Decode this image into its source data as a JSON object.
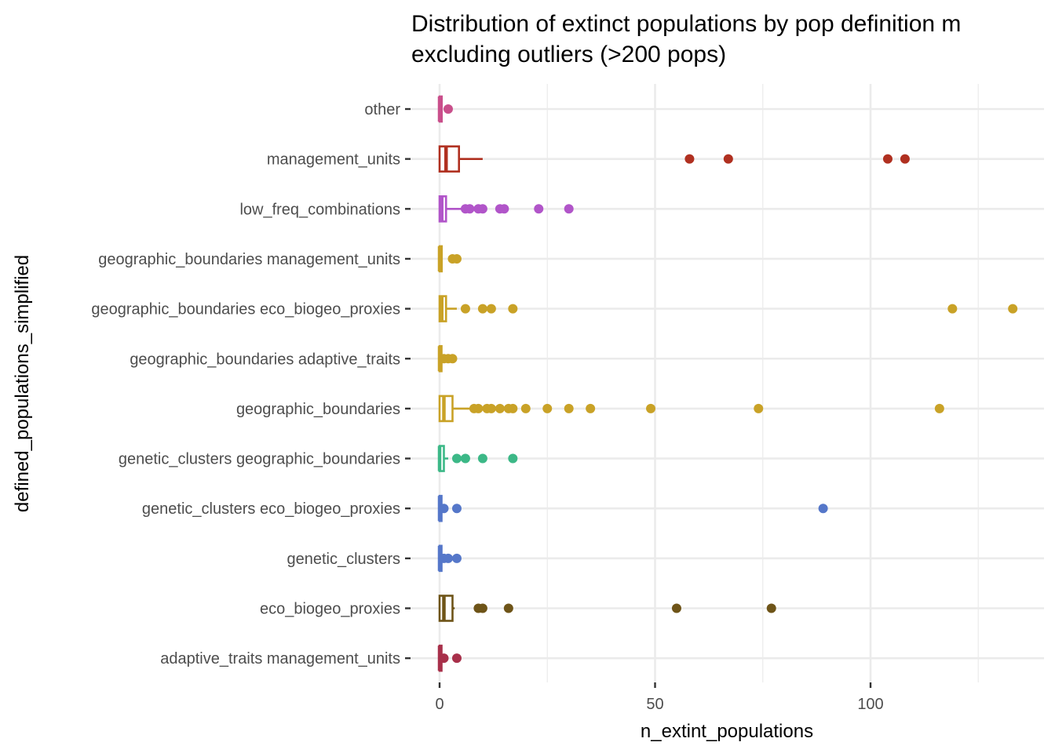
{
  "chart_data": {
    "type": "boxplot",
    "orientation": "horizontal",
    "title_lines": [
      "Distribution of extinct populations by pop definition m",
      "excluding outliers (>200 pops)"
    ],
    "xlabel": "n_extint_populations",
    "ylabel": "defined_populations_simplified",
    "xlim": [
      -0.5,
      140.5
    ],
    "x_ticks": [
      0,
      50,
      100
    ],
    "x_tick_labels": [
      "0",
      "50",
      "100"
    ],
    "x_minor_ticks": [
      25,
      75,
      125
    ],
    "grid": true,
    "legend": "none",
    "categories": [
      {
        "name": "other",
        "color": "#c94f8b",
        "box": {
          "q1": 0,
          "median": 0,
          "q3": 0.5,
          "whisker_low": 0,
          "whisker_high": 0.5
        },
        "outliers": [
          2
        ]
      },
      {
        "name": "management_units",
        "color": "#b03020",
        "box": {
          "q1": 0,
          "median": 1.5,
          "q3": 4.5,
          "whisker_low": 0,
          "whisker_high": 10
        },
        "outliers": [
          58,
          67,
          104,
          108
        ]
      },
      {
        "name": "low_freq_combinations",
        "color": "#b155c9",
        "box": {
          "q1": 0,
          "median": 0.5,
          "q3": 1.5,
          "whisker_low": 0,
          "whisker_high": 5
        },
        "outliers": [
          6,
          7,
          9,
          10,
          14,
          15,
          23,
          30
        ]
      },
      {
        "name": "geographic_boundaries management_units",
        "color": "#c9a227",
        "box": {
          "q1": 0,
          "median": 0,
          "q3": 0.5,
          "whisker_low": 0,
          "whisker_high": 0.5
        },
        "outliers": [
          3,
          4
        ]
      },
      {
        "name": "geographic_boundaries eco_biogeo_proxies",
        "color": "#c9a227",
        "box": {
          "q1": 0,
          "median": 0.5,
          "q3": 1.5,
          "whisker_low": 0,
          "whisker_high": 4
        },
        "outliers": [
          6,
          10,
          12,
          17,
          119,
          133
        ]
      },
      {
        "name": "geographic_boundaries adaptive_traits",
        "color": "#c9a227",
        "box": {
          "q1": 0,
          "median": 0,
          "q3": 0,
          "whisker_low": 0,
          "whisker_high": 0
        },
        "outliers": [
          1,
          2,
          3
        ]
      },
      {
        "name": "geographic_boundaries",
        "color": "#c9a227",
        "box": {
          "q1": 0,
          "median": 1,
          "q3": 3,
          "whisker_low": 0,
          "whisker_high": 7
        },
        "outliers": [
          8,
          9,
          11,
          12,
          14,
          16,
          17,
          20,
          25,
          30,
          35,
          49,
          74,
          116
        ]
      },
      {
        "name": "genetic_clusters geographic_boundaries",
        "color": "#3cb887",
        "box": {
          "q1": 0,
          "median": 0,
          "q3": 1,
          "whisker_low": 0,
          "whisker_high": 2
        },
        "outliers": [
          4,
          6,
          10,
          17
        ]
      },
      {
        "name": "genetic_clusters eco_biogeo_proxies",
        "color": "#5577c9",
        "box": {
          "q1": 0,
          "median": 0,
          "q3": 0,
          "whisker_low": 0,
          "whisker_high": 0
        },
        "outliers": [
          1,
          4,
          89
        ]
      },
      {
        "name": "genetic_clusters",
        "color": "#5577c9",
        "box": {
          "q1": 0,
          "median": 0,
          "q3": 0,
          "whisker_low": 0,
          "whisker_high": 0
        },
        "outliers": [
          1,
          2,
          4
        ]
      },
      {
        "name": "eco_biogeo_proxies",
        "color": "#6e5418",
        "box": {
          "q1": 0,
          "median": 1,
          "q3": 3,
          "whisker_low": 0,
          "whisker_high": 3.5
        },
        "outliers": [
          9,
          10,
          16,
          55,
          77
        ]
      },
      {
        "name": "adaptive_traits management_units",
        "color": "#a8304a",
        "box": {
          "q1": 0,
          "median": 0,
          "q3": 0,
          "whisker_low": 0,
          "whisker_high": 0
        },
        "outliers": [
          1,
          4
        ]
      }
    ]
  }
}
